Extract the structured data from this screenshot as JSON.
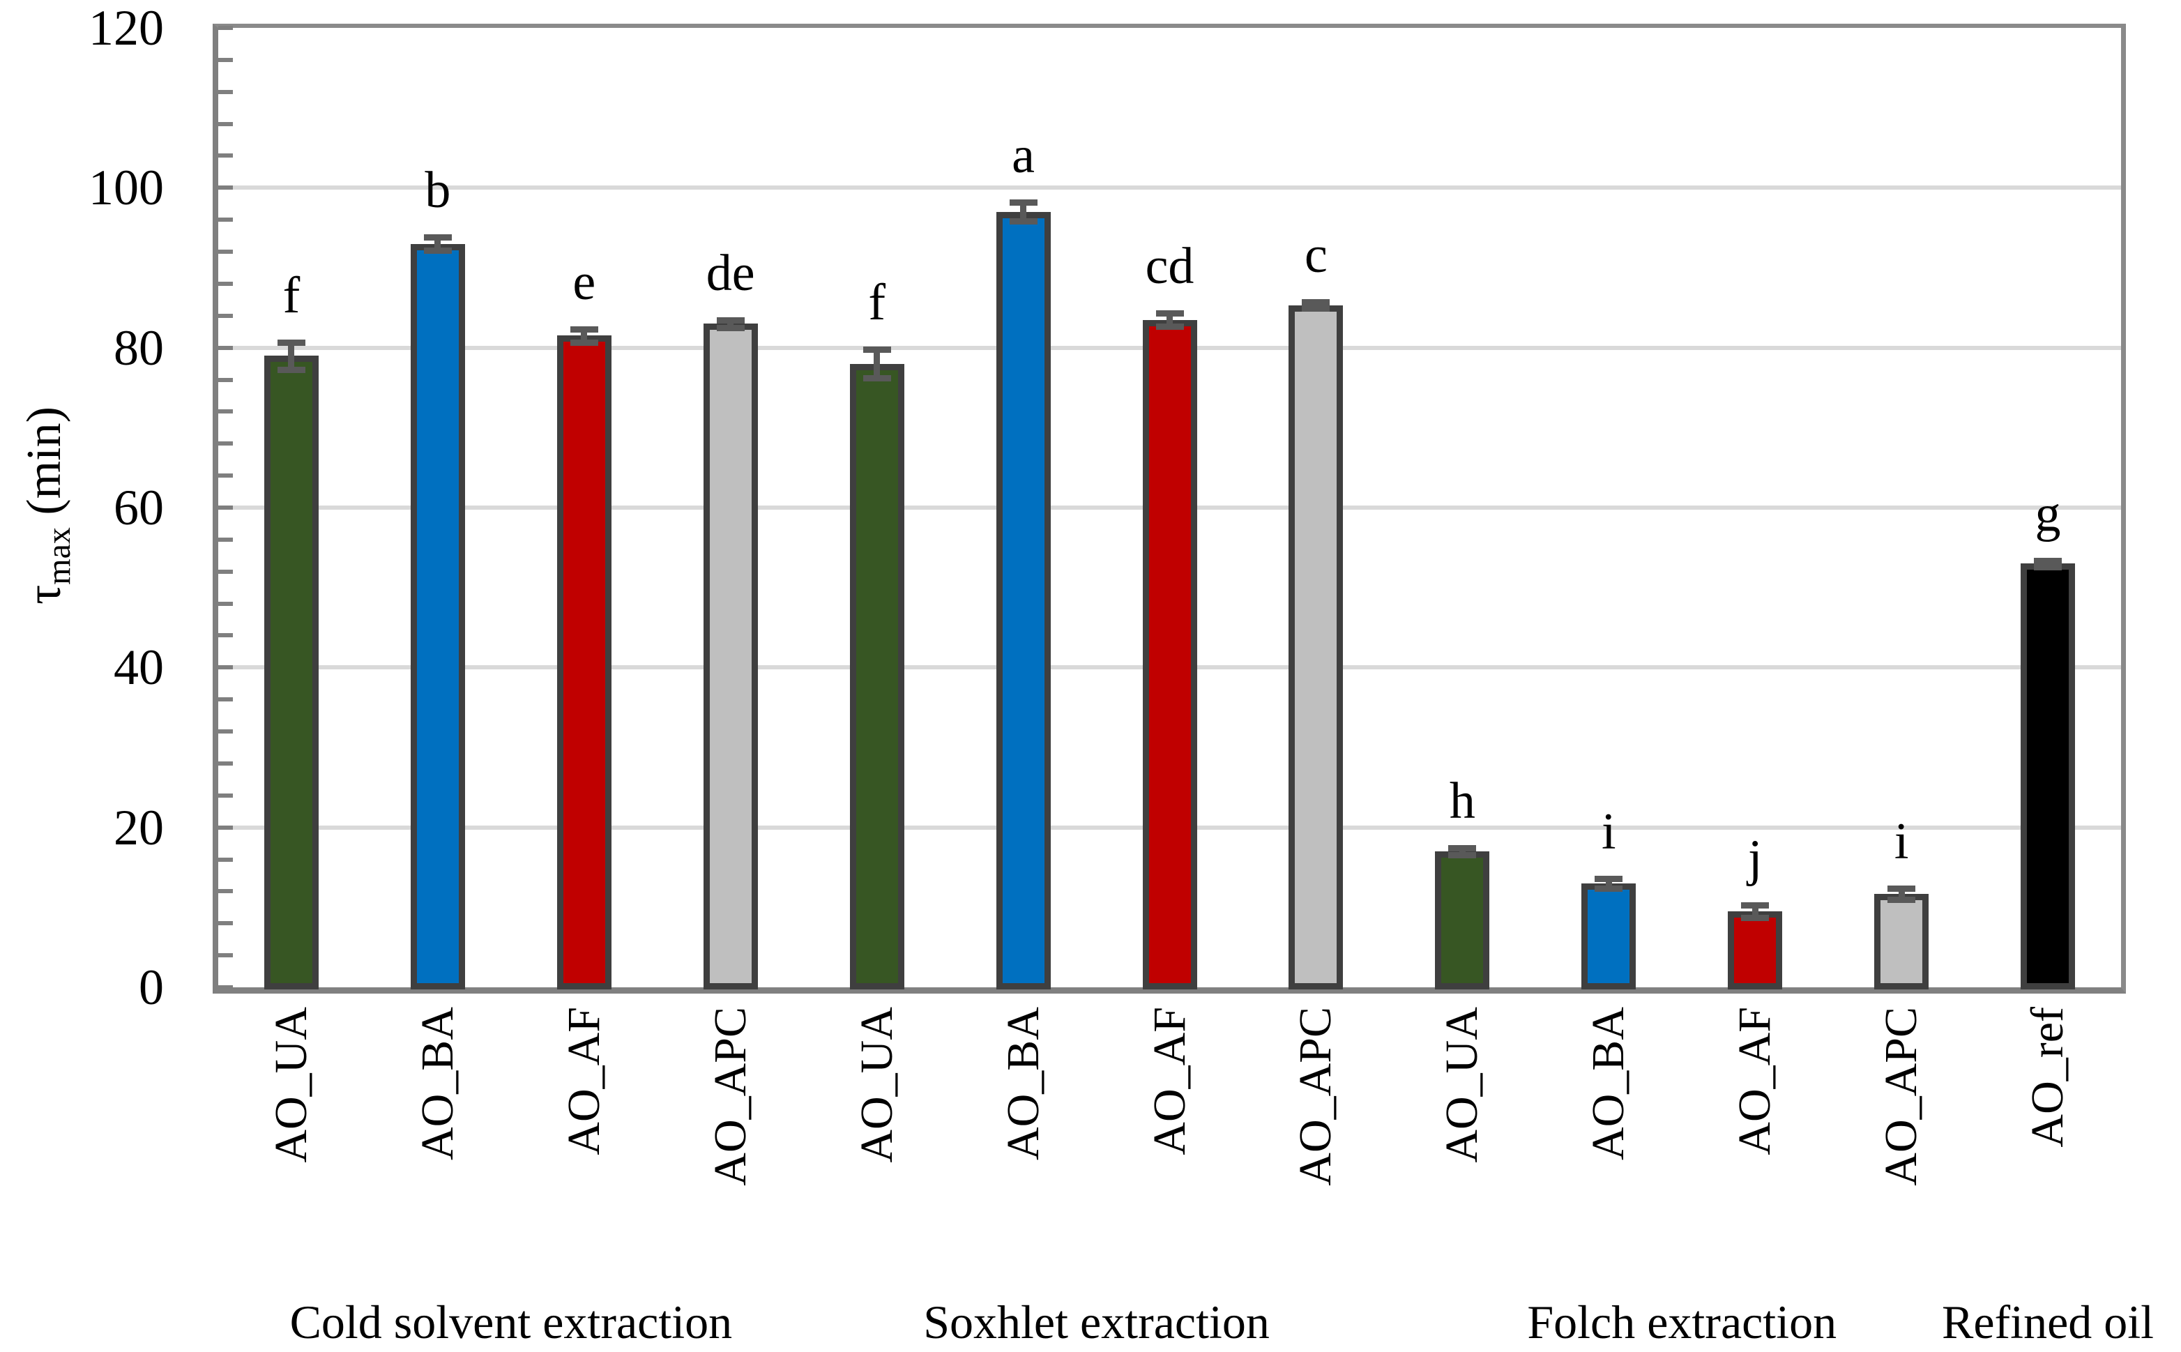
{
  "chart_data": {
    "type": "bar",
    "title": "",
    "ylabel_parts": {
      "symbol": "τ",
      "subscript": "max",
      "unit": "(min)"
    },
    "ylim": [
      0,
      120
    ],
    "ytick_major": 20,
    "ytick_minor": 4,
    "yticks": [
      0,
      20,
      40,
      60,
      80,
      100,
      120
    ],
    "grid": true,
    "legend": false,
    "bar_style": {
      "fill_green": "#375623",
      "fill_blue": "#0070C0",
      "fill_red": "#C00000",
      "fill_gray": "#BFBFBF",
      "fill_black": "#000000",
      "border": "#3F3F3F",
      "error_color": "#595959",
      "gridline_color": "#D9D9D9",
      "axis_color": "#7F7F7F"
    },
    "groups": [
      {
        "label": "Cold solvent extraction",
        "bars": [
          {
            "category": "AO_UA",
            "value": 79,
            "error": 1.7,
            "letter": "f",
            "color": "#375623"
          },
          {
            "category": "AO_BA",
            "value": 93,
            "error": 0.8,
            "letter": "b",
            "color": "#0070C0"
          },
          {
            "category": "AO_AF",
            "value": 81.5,
            "error": 0.8,
            "letter": "e",
            "color": "#C00000"
          },
          {
            "category": "AO_APC",
            "value": 83,
            "error": 0.5,
            "letter": "de",
            "color": "#BFBFBF"
          }
        ]
      },
      {
        "label": "Soxhlet extraction",
        "bars": [
          {
            "category": "AO_UA",
            "value": 78,
            "error": 1.8,
            "letter": "f",
            "color": "#375623"
          },
          {
            "category": "AO_BA",
            "value": 97,
            "error": 1.2,
            "letter": "a",
            "color": "#0070C0"
          },
          {
            "category": "AO_AF",
            "value": 83.5,
            "error": 0.8,
            "letter": "cd",
            "color": "#C00000"
          },
          {
            "category": "AO_APC",
            "value": 85.3,
            "error": 0.4,
            "letter": "c",
            "color": "#BFBFBF"
          }
        ]
      },
      {
        "label": "Folch extraction",
        "bars": [
          {
            "category": "AO_UA",
            "value": 17,
            "error": 0.4,
            "letter": "h",
            "color": "#375623"
          },
          {
            "category": "AO_BA",
            "value": 13,
            "error": 0.6,
            "letter": "i",
            "color": "#0070C0"
          },
          {
            "category": "AO_AF",
            "value": 9.5,
            "error": 0.8,
            "letter": "j",
            "color": "#C00000"
          },
          {
            "category": "AO_APC",
            "value": 11.7,
            "error": 0.7,
            "letter": "i",
            "color": "#BFBFBF"
          }
        ]
      },
      {
        "label": "Refined oil",
        "bars": [
          {
            "category": "AO_ref",
            "value": 53,
            "error": 0.4,
            "letter": "g",
            "color": "#000000"
          }
        ]
      }
    ]
  }
}
